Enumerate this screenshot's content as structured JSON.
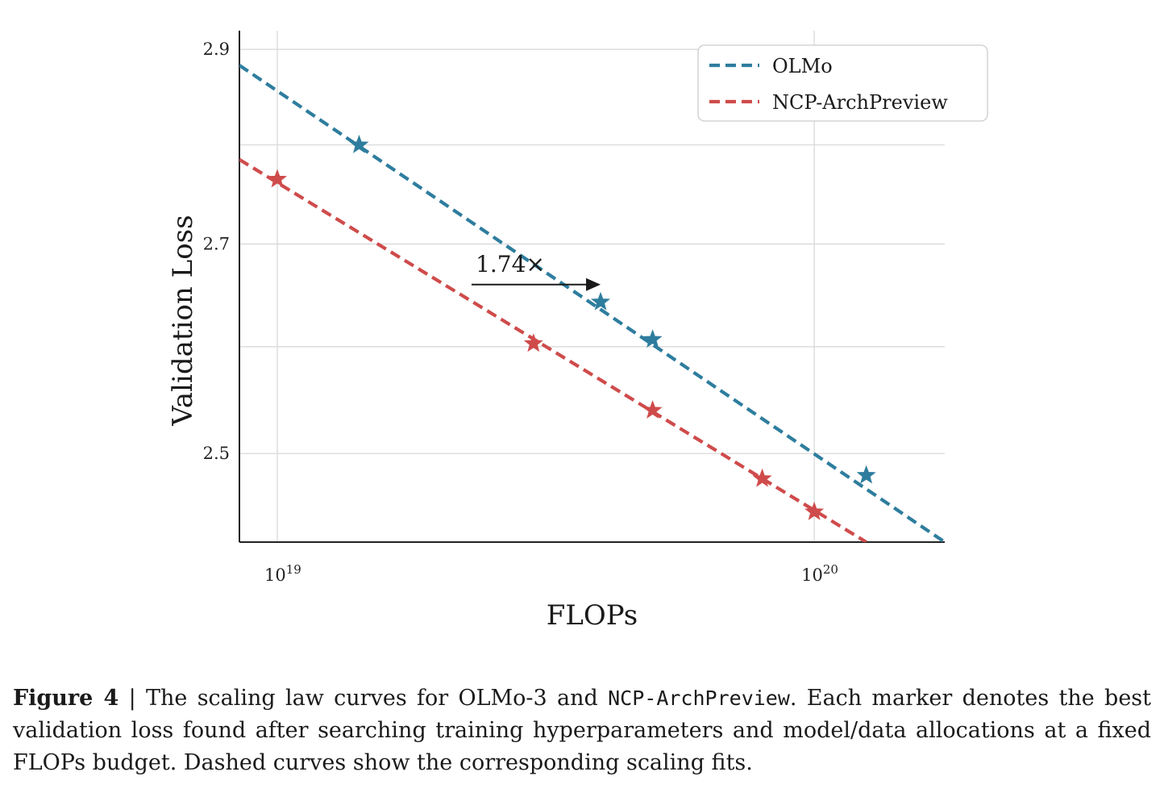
{
  "chart_data": {
    "type": "line",
    "xlabel": "FLOPs",
    "ylabel": "Validation Loss",
    "x_scale": "log",
    "y_scale": "log",
    "xlim": [
      8.5e+18,
      1.75e+20
    ],
    "ylim": [
      2.42,
      2.92
    ],
    "x_ticks": [
      {
        "value": 1e+19,
        "base": "10",
        "exp": "19"
      },
      {
        "value": 1e+20,
        "base": "10",
        "exp": "20"
      }
    ],
    "y_ticks": [
      {
        "value": 2.5,
        "label": "2.5"
      },
      {
        "value": 2.7,
        "label": "2.7"
      },
      {
        "value": 2.9,
        "label": "2.9"
      }
    ],
    "y_minor_gridlines": [
      2.6,
      2.8
    ],
    "grid": true,
    "legend_position": "top-right",
    "series": [
      {
        "name": "OLMo",
        "color": "#2e7d9e",
        "marker": "star",
        "line_style": "dashed",
        "points": [
          {
            "x": 1.42e+19,
            "y": 2.8
          },
          {
            "x": 4e+19,
            "y": 2.643
          },
          {
            "x": 5e+19,
            "y": 2.607
          },
          {
            "x": 1.25e+20,
            "y": 2.48
          }
        ],
        "fit": [
          {
            "x": 8.5e+18,
            "y": 2.883
          },
          {
            "x": 1.75e+20,
            "y": 2.42
          }
        ]
      },
      {
        "name": "NCP-ArchPreview",
        "color": "#cf4b4b",
        "marker": "star",
        "line_style": "dashed",
        "points": [
          {
            "x": 1e+19,
            "y": 2.765
          },
          {
            "x": 3e+19,
            "y": 2.603
          },
          {
            "x": 5e+19,
            "y": 2.54
          },
          {
            "x": 8e+19,
            "y": 2.477
          },
          {
            "x": 1e+20,
            "y": 2.447
          }
        ],
        "fit": [
          {
            "x": 8.5e+18,
            "y": 2.785
          },
          {
            "x": 1.25e+20,
            "y": 2.42
          }
        ]
      }
    ],
    "annotation": {
      "text": "1.74×",
      "arrow_from": {
        "x": 2.3e+19,
        "y": 2.66
      },
      "arrow_to": {
        "x": 4e+19,
        "y": 2.66
      }
    }
  },
  "caption": {
    "label": "Figure 4",
    "separator": " | ",
    "part1": "The scaling law curves for OLMo-3 and ",
    "mono": "NCP-ArchPreview",
    "part2": ". Each marker denotes the best validation loss found after searching training hyperparameters and model/data allocations at a fixed FLOPs budget. Dashed curves show the corresponding scaling fits."
  }
}
